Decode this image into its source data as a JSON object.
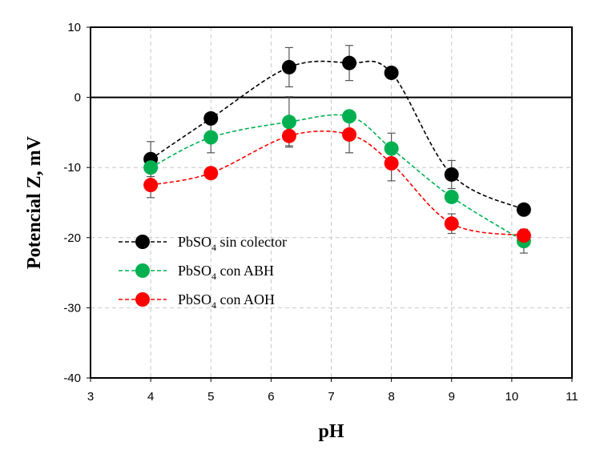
{
  "chart_data": {
    "type": "scatter",
    "xlabel": "pH",
    "ylabel": "Potencial Z, mV",
    "xlim": [
      3,
      11
    ],
    "ylim": [
      -40,
      10
    ],
    "xticks": [
      3,
      4,
      5,
      6,
      7,
      8,
      9,
      10,
      11
    ],
    "yticks": [
      10,
      0,
      -10,
      -20,
      -30,
      -40
    ],
    "grid": true,
    "legend_position": "lower-left",
    "series": [
      {
        "name": "PbSO4 sin colector",
        "label_main": "PbSO",
        "label_sub": "4",
        "label_rest": " sin colector",
        "color": "#000000",
        "x": [
          4,
          5,
          6.3,
          7.3,
          8,
          9,
          10.2
        ],
        "y": [
          -8.8,
          -3.0,
          4.3,
          4.9,
          3.5,
          -11.0,
          -16.0
        ],
        "err": [
          2.5,
          0,
          2.8,
          2.5,
          0,
          2.0,
          0
        ]
      },
      {
        "name": "PbSO4 con ABH",
        "label_main": "PbSO",
        "label_sub": "4",
        "label_rest": " con ABH",
        "color": "#00b050",
        "x": [
          4,
          5,
          6.3,
          7.3,
          8,
          9,
          10.2
        ],
        "y": [
          -10.0,
          -5.7,
          -3.5,
          -2.7,
          -7.3,
          -14.2,
          -20.5
        ],
        "err": [
          0,
          2.2,
          3.6,
          0,
          2.2,
          0,
          1.7
        ]
      },
      {
        "name": "PbSO4 con AOH",
        "label_main": "PbSO",
        "label_sub": "4",
        "label_rest": " con AOH",
        "color": "#ff0000",
        "x": [
          4,
          5,
          6.3,
          7.3,
          8,
          9,
          10.2
        ],
        "y": [
          -12.5,
          -10.8,
          -5.5,
          -5.3,
          -9.4,
          -18.0,
          -19.7
        ],
        "err": [
          1.8,
          0,
          1.4,
          2.6,
          2.5,
          1.4,
          0
        ]
      }
    ]
  }
}
